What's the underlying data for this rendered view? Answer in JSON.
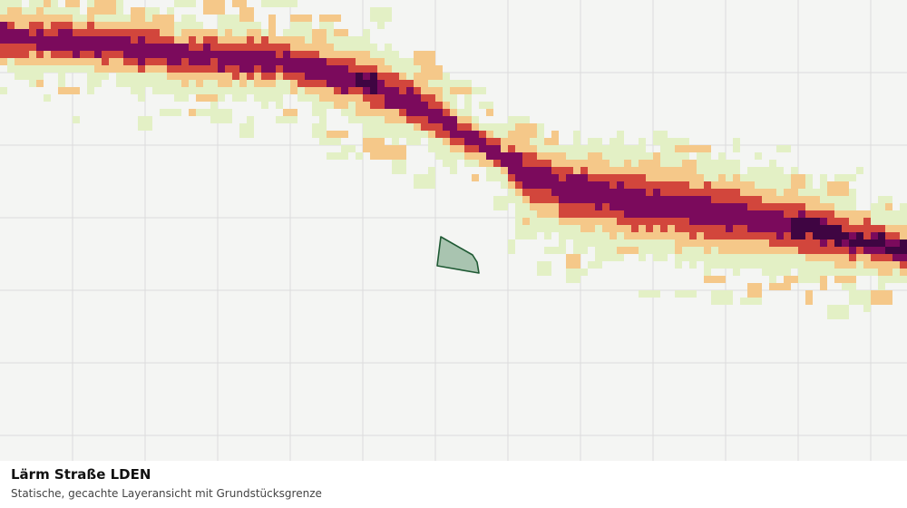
{
  "map": {
    "layer_title": "Lärm Straße LDEN",
    "layer_subtitle": "Statische, gecachte Layeransicht mit Grundstücksgrenze",
    "noise_classes": [
      {
        "level": 1,
        "color": "#e3f0c5"
      },
      {
        "level": 2,
        "color": "#f5c889"
      },
      {
        "level": 3,
        "color": "#d2463c"
      },
      {
        "level": 4,
        "color": "#7b0a5c"
      },
      {
        "level": 5,
        "color": "#3f0542"
      }
    ],
    "parcel": {
      "fill": "#a9c4b0",
      "stroke": "#1f5a34"
    },
    "grid_color": "#dcdcdc"
  }
}
